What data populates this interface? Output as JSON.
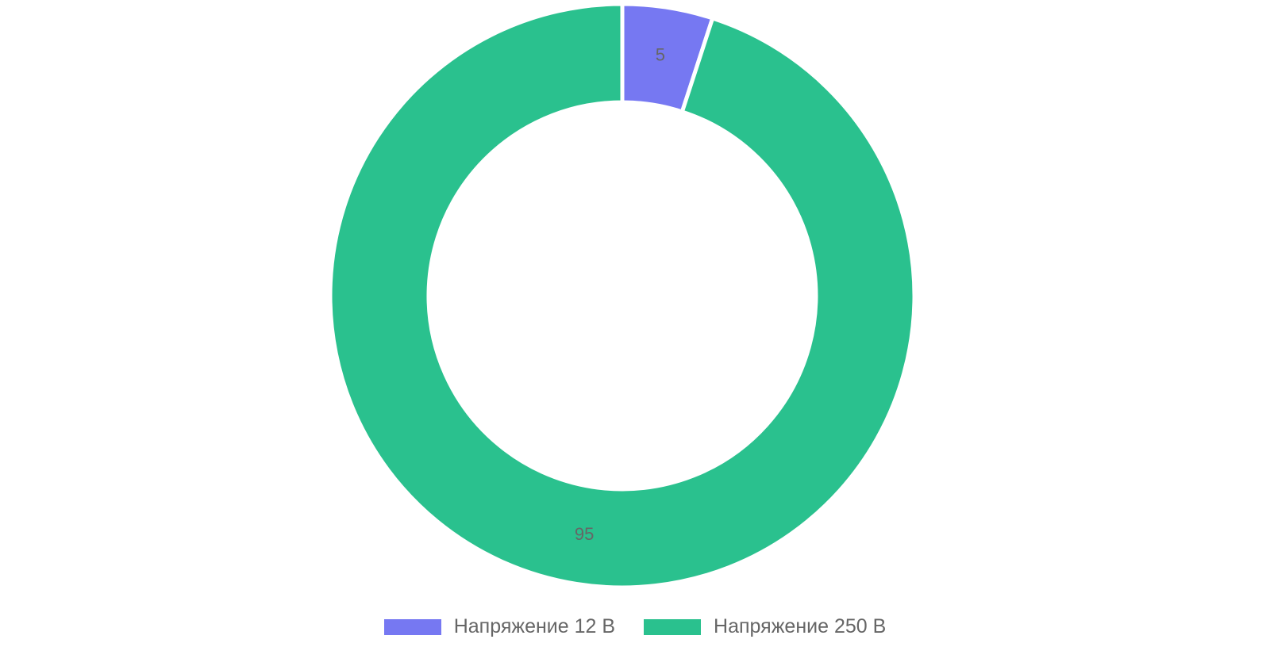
{
  "chart_data": {
    "type": "doughnut",
    "categories": [
      "Напряжение 12 В",
      "Напряжение 250 В"
    ],
    "values": [
      5,
      95
    ],
    "colors": [
      "#7678f2",
      "#2ac18e"
    ]
  }
}
